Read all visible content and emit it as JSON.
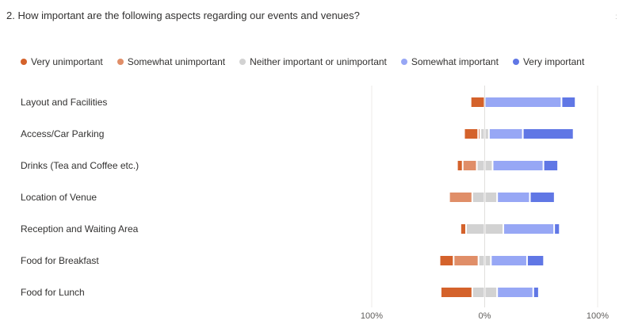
{
  "question": {
    "title": "2. How important are the following aspects regarding our events and venues?"
  },
  "chart_data": {
    "type": "bar",
    "layout": "diverging-stacked-horizontal",
    "categories": [
      "Layout and Facilities",
      "Access/Car Parking",
      "Drinks (Tea and Coffee etc.)",
      "Location of Venue",
      "Reception and Waiting Area",
      "Food for Breakfast",
      "Food for Lunch"
    ],
    "series": [
      {
        "name": "Very unimportant",
        "color": "#d4622b",
        "values": [
          12.5,
          12.5,
          5,
          0,
          5,
          12.5,
          28
        ]
      },
      {
        "name": "Somewhat unimportant",
        "color": "#e08e68",
        "values": [
          0,
          2,
          12.5,
          20.5,
          0,
          22,
          0
        ]
      },
      {
        "name": "Neither important or unimportant",
        "color": "#d2d2d2",
        "values": [
          0,
          7.5,
          14,
          22,
          33,
          11,
          22
        ]
      },
      {
        "name": "Somewhat important",
        "color": "#97a7f5",
        "values": [
          68,
          30,
          45,
          29,
          45,
          32,
          32
        ]
      },
      {
        "name": "Very important",
        "color": "#6077e5",
        "values": [
          12.5,
          45,
          13,
          22,
          5,
          15,
          5
        ]
      }
    ],
    "neutral_split": "centered",
    "xlim": [
      -100,
      100
    ],
    "xticks": [
      "100%",
      "0%",
      "100%"
    ],
    "legend": "top",
    "grid": false
  }
}
